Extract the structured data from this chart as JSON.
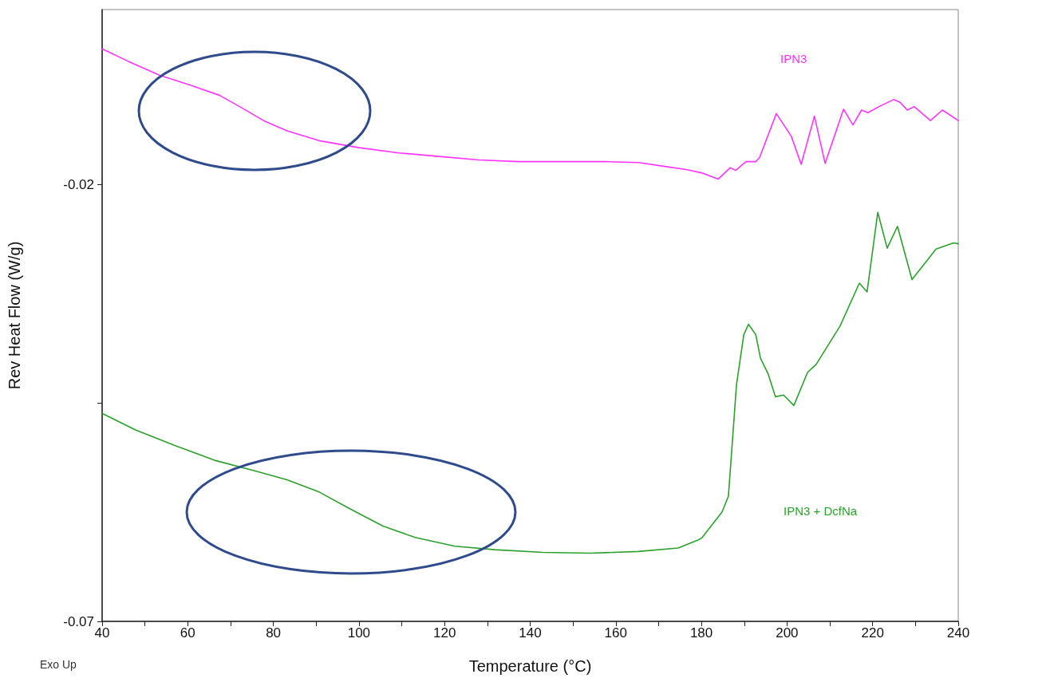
{
  "chart_data": {
    "type": "line",
    "xlabel": "Temperature (°C)",
    "ylabel": "Rev Heat Flow (W/g)",
    "annotations": [
      "Exo Up"
    ],
    "xlim": [
      40,
      240
    ],
    "ylim": [
      -0.07,
      0.0
    ],
    "xticks": [
      40,
      {
        "value": 50,
        "label": null
      },
      60,
      {
        "value": 70,
        "label": null
      },
      80,
      {
        "value": 90,
        "label": null
      },
      100,
      {
        "value": 110,
        "label": null
      },
      120,
      {
        "value": 130,
        "label": null
      },
      140,
      {
        "value": 150,
        "label": null
      },
      160,
      {
        "value": 170,
        "label": null
      },
      180,
      {
        "value": 190,
        "label": null
      },
      200,
      {
        "value": 210,
        "label": null
      },
      220,
      {
        "value": 230,
        "label": null
      },
      240
    ],
    "yticks": [
      -0.07,
      {
        "value": -0.045,
        "label": null
      },
      {
        "value": -0.02,
        "label": "-0.02"
      }
    ],
    "grid": false,
    "legend": false,
    "marker": "none",
    "line_style": "solid",
    "series": [
      {
        "name": "IPN3",
        "color": "#ff33ff",
        "x": [
          40,
          46,
          53.4,
          60.9,
          67.4,
          72.1,
          77.7,
          83.3,
          90.7,
          100,
          109.3,
          118.7,
          128,
          137.3,
          146.6,
          157.8,
          165.3,
          170.8,
          176.4,
          180.2,
          183.9,
          186.7,
          188,
          190.4,
          192.7,
          193.6,
          197.5,
          201,
          203.3,
          206.4,
          208.9,
          213.2,
          215.4,
          217.4,
          218.9,
          221.5,
          224.9,
          226.4,
          228.1,
          229.7,
          233.5,
          236.3,
          240
        ],
        "values": [
          -0.0045,
          -0.0059,
          -0.0075,
          -0.0087,
          -0.0098,
          -0.0111,
          -0.0127,
          -0.0139,
          -0.015,
          -0.0158,
          -0.0164,
          -0.0168,
          -0.0172,
          -0.0174,
          -0.0174,
          -0.0174,
          -0.0175,
          -0.0179,
          -0.0183,
          -0.0187,
          -0.0194,
          -0.0181,
          -0.0184,
          -0.0174,
          -0.0174,
          -0.0169,
          -0.0119,
          -0.0145,
          -0.0177,
          -0.0122,
          -0.0176,
          -0.0114,
          -0.0132,
          -0.0115,
          -0.0118,
          -0.0111,
          -0.0103,
          -0.0106,
          -0.0115,
          -0.0111,
          -0.0127,
          -0.0115,
          -0.0127
        ]
      },
      {
        "name": "IPN3 + DcfNa",
        "color": "#2ca02c",
        "x": [
          40,
          47.8,
          57.1,
          66.5,
          75.8,
          83.2,
          90.7,
          98.2,
          105.6,
          113.1,
          122.4,
          131.7,
          142.9,
          154.1,
          165.3,
          174.6,
          179.2,
          180.2,
          184.8,
          186.3,
          188.2,
          189.9,
          191,
          192.7,
          193.8,
          195.6,
          197.3,
          199.2,
          201.6,
          204.8,
          206.8,
          212.4,
          216.9,
          218.7,
          221.2,
          223.4,
          225.8,
          229.2,
          234.8,
          238.9,
          240
        ],
        "values": [
          -0.0462,
          -0.0481,
          -0.0499,
          -0.0516,
          -0.0528,
          -0.0538,
          -0.0552,
          -0.0572,
          -0.0591,
          -0.0604,
          -0.0614,
          -0.0618,
          -0.0621,
          -0.0622,
          -0.062,
          -0.0616,
          -0.0607,
          -0.0604,
          -0.0575,
          -0.0557,
          -0.0429,
          -0.0372,
          -0.036,
          -0.0372,
          -0.0399,
          -0.0417,
          -0.0443,
          -0.0441,
          -0.0453,
          -0.0415,
          -0.0406,
          -0.0362,
          -0.0313,
          -0.0323,
          -0.0232,
          -0.0273,
          -0.0248,
          -0.0309,
          -0.0274,
          -0.0267,
          -0.0268
        ]
      }
    ]
  }
}
